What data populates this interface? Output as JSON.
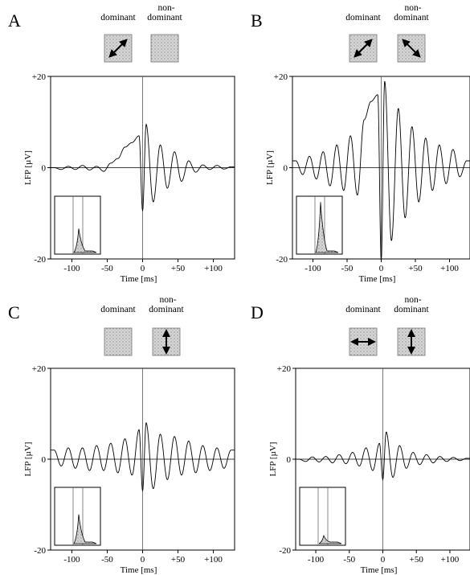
{
  "figure": {
    "stimulus_labels": {
      "dominant": "dominant",
      "nondominant": "non-\ndominant"
    },
    "panels": [
      {
        "letter": "A",
        "dominant_stimulus": "diagonal-arrow",
        "nondominant_stimulus": "none"
      },
      {
        "letter": "B",
        "dominant_stimulus": "diagonal-arrow",
        "nondominant_stimulus": "antidiagonal-arrow"
      },
      {
        "letter": "C",
        "dominant_stimulus": "none",
        "nondominant_stimulus": "vertical-arrow"
      },
      {
        "letter": "D",
        "dominant_stimulus": "horizontal-arrow",
        "nondominant_stimulus": "vertical-arrow"
      }
    ]
  },
  "chart_data": [
    {
      "panel": "A",
      "type": "line",
      "xlabel": "Time [ms]",
      "ylabel": "LFP [µV]",
      "xlim": [
        -130,
        130
      ],
      "ylim": [
        -20,
        20
      ],
      "xticks": [
        "-100",
        "-50",
        "0",
        "+50",
        "+100"
      ],
      "yticks": [
        "+20",
        "0",
        "-20"
      ],
      "x": [
        -125,
        -115,
        -105,
        -95,
        -85,
        -75,
        -65,
        -55,
        -45,
        -35,
        -25,
        -15,
        -5,
        0,
        5,
        15,
        25,
        35,
        45,
        55,
        65,
        75,
        85,
        95,
        105,
        115,
        125
      ],
      "y": [
        0.0,
        -0.4,
        0.3,
        -0.4,
        0.5,
        -0.5,
        0.3,
        -0.8,
        1.0,
        2.0,
        4.5,
        5.5,
        7.0,
        -9.5,
        9.5,
        -7.5,
        5.0,
        -4.5,
        3.5,
        -3.0,
        1.5,
        -1.0,
        0.6,
        -0.4,
        0.5,
        -0.3,
        0.2
      ],
      "inset_peak": 0.45
    },
    {
      "panel": "B",
      "type": "line",
      "xlabel": "Time [ms]",
      "ylabel": "LFP [µV]",
      "xlim": [
        -130,
        130
      ],
      "ylim": [
        -20,
        20
      ],
      "xticks": [
        "-100",
        "-50",
        "0",
        "+50",
        "+100"
      ],
      "yticks": [
        "+20",
        "0",
        "-20"
      ],
      "x": [
        -125,
        -115,
        -105,
        -95,
        -85,
        -75,
        -65,
        -55,
        -45,
        -35,
        -25,
        -15,
        -5,
        0,
        5,
        15,
        25,
        35,
        45,
        55,
        65,
        75,
        85,
        95,
        105,
        115,
        125
      ],
      "y": [
        1.5,
        -1.5,
        2.5,
        -2.5,
        3.5,
        -4.0,
        5.0,
        -5.0,
        7.0,
        -6.0,
        10.5,
        14.5,
        16.0,
        -20.5,
        19.0,
        -16.0,
        13.0,
        -11.0,
        9.0,
        -7.5,
        6.5,
        -5.0,
        5.0,
        -3.5,
        4.0,
        -2.0,
        1.5
      ],
      "inset_peak": 0.95
    },
    {
      "panel": "C",
      "type": "line",
      "xlabel": "Time [ms]",
      "ylabel": "LFP [µV]",
      "xlim": [
        -130,
        130
      ],
      "ylim": [
        -20,
        20
      ],
      "xticks": [
        "-100",
        "-50",
        "0",
        "+50",
        "+100"
      ],
      "yticks": [
        "+20",
        "0",
        "-20"
      ],
      "x": [
        -125,
        -115,
        -105,
        -95,
        -85,
        -75,
        -65,
        -55,
        -45,
        -35,
        -25,
        -15,
        -5,
        0,
        5,
        15,
        25,
        35,
        45,
        55,
        65,
        75,
        85,
        95,
        105,
        115,
        125
      ],
      "y": [
        2.0,
        -1.5,
        2.5,
        -2.0,
        2.5,
        -2.5,
        3.0,
        -2.5,
        3.5,
        -3.0,
        4.5,
        -3.5,
        6.5,
        -7.0,
        8.0,
        -6.5,
        5.5,
        -4.5,
        5.0,
        -3.5,
        4.0,
        -3.0,
        3.0,
        -2.5,
        2.5,
        -2.0,
        2.0
      ],
      "inset_peak": 0.55
    },
    {
      "panel": "D",
      "type": "line",
      "xlabel": "Time [ms]",
      "ylabel": "LFP [µV]",
      "xlim": [
        -130,
        130
      ],
      "ylim": [
        -20,
        20
      ],
      "xticks": [
        "-100",
        "-50",
        "0",
        "+50",
        "+100"
      ],
      "yticks": [
        "+20",
        "0",
        "-20"
      ],
      "x": [
        -125,
        -115,
        -105,
        -95,
        -85,
        -75,
        -65,
        -55,
        -45,
        -35,
        -25,
        -15,
        -5,
        0,
        5,
        15,
        25,
        35,
        45,
        55,
        65,
        75,
        85,
        95,
        105,
        115,
        125
      ],
      "y": [
        0.0,
        -0.5,
        0.5,
        -0.6,
        0.6,
        -0.8,
        1.0,
        -1.0,
        1.5,
        -1.5,
        2.5,
        -2.5,
        3.5,
        -4.5,
        6.0,
        -4.0,
        3.0,
        -2.0,
        1.5,
        -1.2,
        1.0,
        -0.8,
        0.6,
        -0.5,
        0.4,
        -0.3,
        0.2
      ],
      "inset_peak": 0.15
    }
  ]
}
